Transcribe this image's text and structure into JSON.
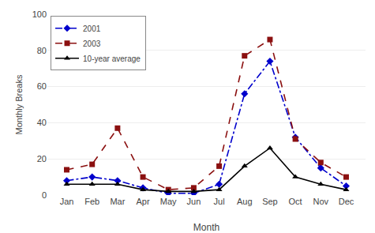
{
  "chart_data": {
    "type": "line",
    "categories": [
      "Jan",
      "Feb",
      "Mar",
      "Apr",
      "May",
      "Jun",
      "Jul",
      "Aug",
      "Sep",
      "Oct",
      "Nov",
      "Dec"
    ],
    "series": [
      {
        "name": "2001",
        "color": "#0000CC",
        "marker": "diamond",
        "line_style": "dashdot",
        "values": [
          8,
          10,
          8,
          4,
          1,
          1,
          6,
          56,
          74,
          32,
          15,
          5
        ]
      },
      {
        "name": "2003",
        "color": "#8B1010",
        "marker": "square",
        "line_style": "dash",
        "values": [
          14,
          17,
          37,
          10,
          3,
          4,
          16,
          77,
          86,
          31,
          18,
          10
        ]
      },
      {
        "name": "10-year average",
        "color": "#000000",
        "marker": "triangle",
        "line_style": "solid",
        "values": [
          6,
          6,
          6,
          3,
          2,
          2,
          3,
          16,
          26,
          10,
          6,
          3
        ]
      }
    ],
    "xlabel": "Month",
    "ylabel": "Monthly Breaks",
    "ylim": [
      0,
      100
    ],
    "yticks": [
      0,
      20,
      40,
      60,
      80,
      100
    ],
    "grid": true,
    "legend": "upper left"
  }
}
